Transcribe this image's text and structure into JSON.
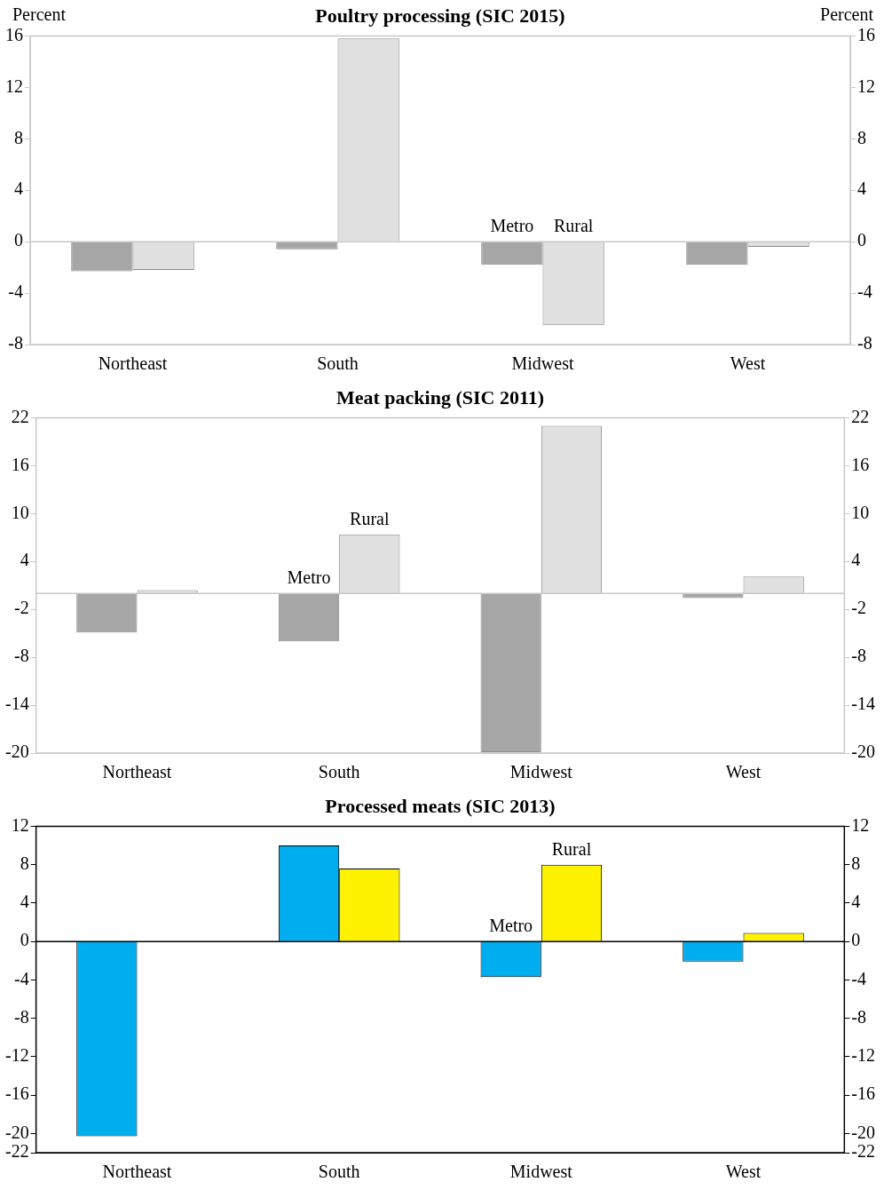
{
  "chart_data": [
    {
      "type": "bar",
      "title": "Poultry processing (SIC 2015)",
      "ylabel": "Percent",
      "y2label": "Percent",
      "categories": [
        "Northeast",
        "South",
        "Midwest",
        "West"
      ],
      "series": [
        {
          "color": "#a6a6a6",
          "values": [
            -2.3,
            -0.6,
            -1.8,
            -1.8
          ]
        },
        {
          "color": "#e0e0e0",
          "values": [
            -2.2,
            15.8,
            -6.5,
            -0.4
          ]
        }
      ],
      "ylim": [
        -8,
        16
      ],
      "yticks": [
        -8,
        -4,
        0,
        4,
        8,
        12,
        16
      ],
      "y2lim": [
        -8,
        16
      ],
      "y2ticks": [
        -8,
        -4,
        0,
        4,
        8,
        12,
        16
      ],
      "ref_lines": [
        {
          "axis": "y",
          "value": 0,
          "color": "#c8c8c8"
        }
      ],
      "annotations": [
        {
          "text": "Metro",
          "x": "Midwest",
          "y": 0
        },
        {
          "text": "Rural",
          "x": "Midwest",
          "y": 0
        }
      ],
      "legend": false,
      "grid": false
    },
    {
      "type": "bar",
      "title": "Meat packing (SIC 2011)",
      "categories": [
        "Northeast",
        "South",
        "Midwest",
        "West"
      ],
      "series": [
        {
          "color": "#a6a6a6",
          "values": [
            -4.9,
            -6.0,
            -19.9,
            -0.6
          ]
        },
        {
          "color": "#e0e0e0",
          "values": [
            0.4,
            7.4,
            21.0,
            2.1
          ]
        }
      ],
      "ylim": [
        -20,
        22
      ],
      "yticks": [
        -20,
        -14,
        -8,
        -2,
        4,
        10,
        16,
        22
      ],
      "y2lim": [
        -20,
        22
      ],
      "y2ticks": [
        -20,
        -14,
        -8,
        -2,
        4,
        10,
        16,
        22
      ],
      "ref_lines": [
        {
          "axis": "y",
          "value": 0,
          "color": "#c8c8c8"
        }
      ],
      "annotations": [
        {
          "text": "Metro",
          "x": "South",
          "y": 0
        },
        {
          "text": "Rural",
          "x": "South",
          "y": 7.4
        }
      ],
      "legend": false,
      "grid": false
    },
    {
      "type": "bar",
      "title": "Processed meats (SIC 2013)",
      "categories": [
        "Northeast",
        "South",
        "Midwest",
        "West"
      ],
      "series": [
        {
          "color": "#00aeef",
          "values": [
            -20.3,
            10,
            -3.7,
            -2.1
          ]
        },
        {
          "color": "#fff200",
          "values": [
            0,
            7.6,
            8.0,
            0.9
          ]
        }
      ],
      "ylim": [
        -22,
        12
      ],
      "yticks": [
        {
          "value": -22,
          "label": "-22"
        },
        -20,
        -16,
        -12,
        -8,
        -4,
        0,
        4,
        8,
        12
      ],
      "y2lim": [
        -22,
        12
      ],
      "y2ticks": [
        -22,
        -20,
        -16,
        -12,
        -8,
        -4,
        0,
        4,
        8,
        12
      ],
      "ref_lines": [
        {
          "axis": "y",
          "value": 0,
          "color": "#000000"
        }
      ],
      "annotations": [
        {
          "text": "Metro",
          "x": "Midwest",
          "y": 0
        },
        {
          "text": "Rural",
          "x": "Midwest",
          "y": 8.0
        }
      ],
      "legend": false,
      "grid": false
    }
  ]
}
